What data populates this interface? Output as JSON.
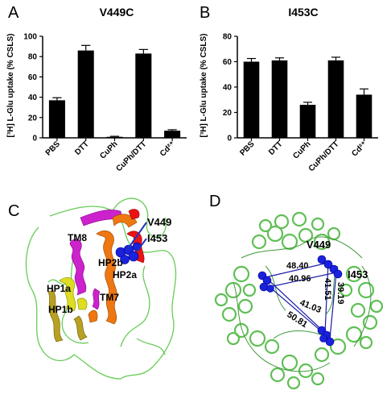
{
  "panels": {
    "a": "A",
    "b": "B",
    "c": "C",
    "d": "D"
  },
  "chart_data": [
    {
      "type": "bar",
      "title": "V449C",
      "ylabel": "[³H] L-Glu uptake (% CSLS)",
      "categories": [
        "PBS",
        "DTT",
        "CuPh",
        "CuPh/DTT",
        "Cd²⁺"
      ],
      "values": [
        37,
        86,
        1,
        83,
        7
      ],
      "errors": [
        2.5,
        5,
        0.5,
        4,
        1
      ],
      "ylim": [
        0,
        100
      ],
      "yticks": [
        0,
        20,
        40,
        60,
        80,
        100
      ],
      "bar_color": "#000000"
    },
    {
      "type": "bar",
      "title": "I453C",
      "ylabel": "[³H] L-Glu uptake (% CSLS)",
      "categories": [
        "PBS",
        "DTT",
        "CuPh",
        "CuPh/DTT",
        "Cd²⁺"
      ],
      "values": [
        60,
        61,
        26,
        61,
        34
      ],
      "errors": [
        2.5,
        2,
        2,
        2.5,
        4.5
      ],
      "ylim": [
        0,
        80
      ],
      "yticks": [
        0,
        20,
        40,
        60,
        80
      ],
      "bar_color": "#000000"
    }
  ],
  "structure_c": {
    "labels": [
      "V449",
      "I453",
      "TM8",
      "HP2b",
      "HP2a",
      "HP1a",
      "HP1b",
      "TM7"
    ]
  },
  "structure_d": {
    "labels": [
      "V449",
      "I453"
    ],
    "distances": [
      "48.40",
      "40.96",
      "41.51",
      "39.19",
      "41.03",
      "50.81"
    ]
  }
}
